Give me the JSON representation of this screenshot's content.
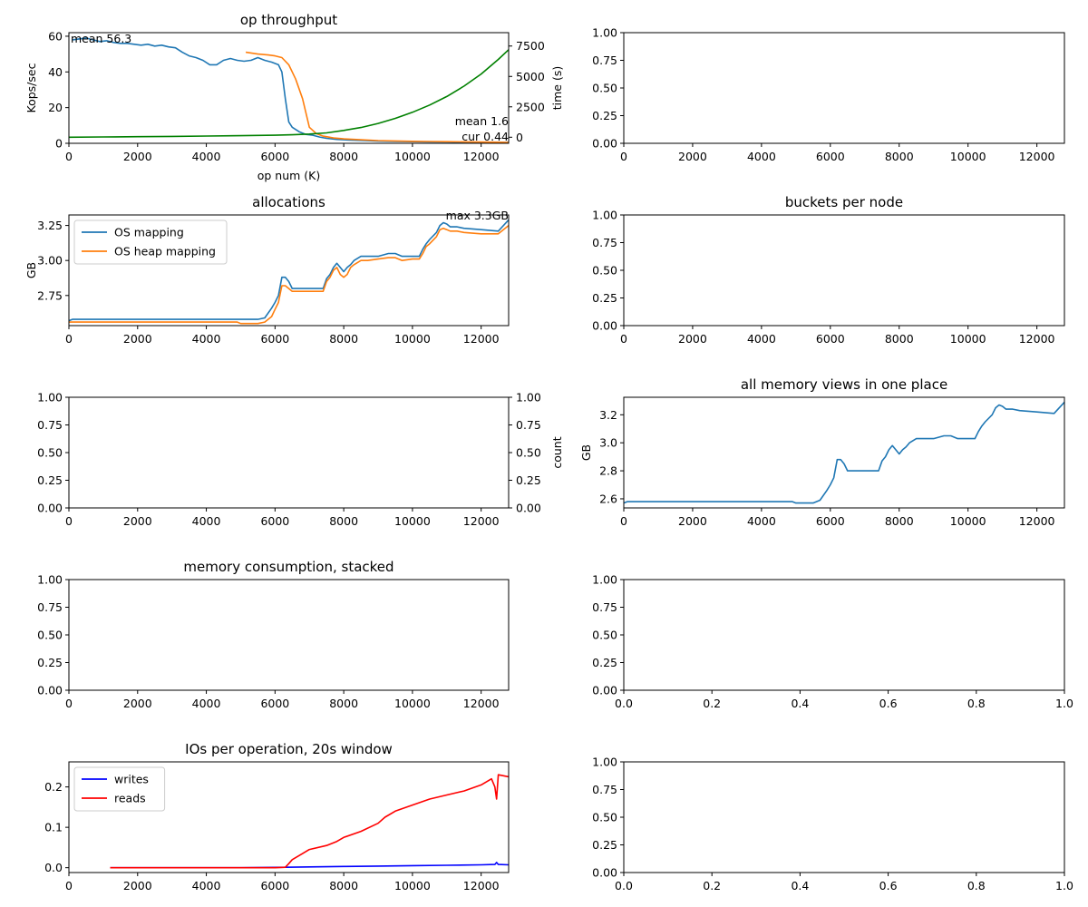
{
  "colors": {
    "blue": "#1f77b4",
    "orange": "#ff7f0e",
    "green": "#008000",
    "pure_blue": "#0000ff",
    "red": "#ff0000"
  },
  "chart_data": [
    {
      "id": "p1",
      "type": "line",
      "title": "op throughput",
      "xlabel": "op num (K)",
      "ylabel": "Kops/sec",
      "ylabel_right": "time (s)",
      "xlim": [
        0,
        12800
      ],
      "ylim": [
        0,
        62
      ],
      "ylim_right": [
        -500,
        8600
      ],
      "xticks": [
        0,
        2000,
        4000,
        6000,
        8000,
        10000,
        12000
      ],
      "yticks": [
        0,
        20,
        40,
        60
      ],
      "yticks_right": [
        0,
        2500,
        5000,
        7500
      ],
      "annotations": [
        "mean 56.3",
        "mean 1.6",
        "cur 0.44"
      ],
      "series": [
        {
          "axis": "left",
          "color": "blue",
          "x": [
            100,
            300,
            500,
            700,
            900,
            1100,
            1300,
            1500,
            1700,
            1900,
            2100,
            2300,
            2500,
            2700,
            2900,
            3100,
            3300,
            3500,
            3700,
            3900,
            4100,
            4300,
            4500,
            4700,
            4900,
            5100,
            5300,
            5500,
            5700,
            5900,
            6100,
            6200,
            6300,
            6400,
            6500,
            6700,
            6900,
            7100,
            7300,
            7500,
            7800,
            8200,
            8600,
            9000,
            9500,
            10000,
            10500,
            11000,
            11500,
            12000,
            12500,
            12800
          ],
          "y": [
            58,
            58.5,
            59,
            58,
            57,
            57.5,
            56.5,
            56,
            56,
            55.5,
            55,
            55.5,
            54.5,
            55,
            54,
            53.5,
            51,
            49,
            48,
            46.5,
            44,
            44,
            46.5,
            47.5,
            46.5,
            46,
            46.5,
            48,
            46.5,
            45.5,
            44,
            40,
            25,
            12,
            9,
            6.5,
            5,
            4.5,
            3.5,
            2.8,
            2.2,
            1.8,
            1.5,
            1.2,
            1.0,
            0.9,
            0.8,
            0.7,
            0.6,
            0.55,
            0.5,
            0.44
          ]
        },
        {
          "axis": "left",
          "color": "orange",
          "x": [
            5150,
            5500,
            5800,
            6000,
            6200,
            6400,
            6600,
            6800,
            7000,
            7200,
            7400,
            7700,
            8000,
            8500,
            9000,
            9500,
            10000,
            10500,
            11000,
            11500,
            12000,
            12500,
            12800
          ],
          "y": [
            51,
            50,
            49.5,
            49,
            48,
            44,
            36,
            25,
            9,
            5.5,
            4,
            3,
            2.5,
            2,
            1.5,
            1.3,
            1.1,
            1.0,
            0.9,
            0.8,
            0.7,
            0.6,
            0.5
          ]
        },
        {
          "axis": "right",
          "color": "green",
          "x": [
            0,
            1000,
            2000,
            3000,
            4000,
            5000,
            6000,
            6500,
            7000,
            7500,
            8000,
            8500,
            9000,
            9500,
            10000,
            10500,
            11000,
            11500,
            12000,
            12500,
            12800
          ],
          "y": [
            0,
            20,
            45,
            70,
            100,
            130,
            165,
            200,
            260,
            360,
            560,
            800,
            1130,
            1550,
            2050,
            2650,
            3350,
            4200,
            5200,
            6400,
            7200
          ]
        }
      ]
    },
    {
      "id": "p2",
      "type": "line",
      "xlim": [
        0,
        12800
      ],
      "ylim": [
        0,
        1
      ],
      "xticks": [
        0,
        2000,
        4000,
        6000,
        8000,
        10000,
        12000
      ],
      "yticks": [
        0,
        0.25,
        0.5,
        0.75,
        1.0
      ],
      "series": []
    },
    {
      "id": "p3",
      "type": "line",
      "title": "allocations",
      "ylabel": "GB",
      "xlim": [
        0,
        12800
      ],
      "ylim": [
        2.535,
        3.325
      ],
      "xticks": [
        0,
        2000,
        4000,
        6000,
        8000,
        10000,
        12000
      ],
      "yticks": [
        2.75,
        3.0,
        3.25
      ],
      "annotations": [
        "max 3.3GB"
      ],
      "legend": [
        "OS mapping",
        "OS heap mapping"
      ],
      "series": [
        {
          "name": "OS mapping",
          "color": "blue",
          "x": [
            0,
            100,
            4900,
            5000,
            5500,
            5700,
            5900,
            6000,
            6100,
            6200,
            6300,
            6400,
            6500,
            7400,
            7500,
            7600,
            7700,
            7800,
            7900,
            8000,
            8100,
            8200,
            8300,
            8500,
            8700,
            9000,
            9300,
            9500,
            9700,
            10000,
            10200,
            10300,
            10400,
            10500,
            10700,
            10800,
            10900,
            11000,
            11100,
            11300,
            11500,
            12000,
            12500,
            12800
          ],
          "y": [
            2.57,
            2.58,
            2.58,
            2.58,
            2.58,
            2.59,
            2.66,
            2.7,
            2.75,
            2.88,
            2.88,
            2.85,
            2.8,
            2.8,
            2.87,
            2.9,
            2.95,
            2.98,
            2.95,
            2.92,
            2.95,
            2.97,
            3.0,
            3.03,
            3.03,
            3.03,
            3.05,
            3.05,
            3.03,
            3.03,
            3.03,
            3.08,
            3.12,
            3.15,
            3.2,
            3.25,
            3.27,
            3.26,
            3.24,
            3.24,
            3.23,
            3.22,
            3.21,
            3.29
          ]
        },
        {
          "name": "OS heap mapping",
          "color": "orange",
          "x": [
            0,
            100,
            4900,
            5000,
            5500,
            5700,
            5900,
            6000,
            6100,
            6200,
            6300,
            6400,
            6500,
            7400,
            7500,
            7600,
            7700,
            7800,
            7900,
            8000,
            8100,
            8200,
            8300,
            8500,
            8700,
            9000,
            9300,
            9500,
            9700,
            10000,
            10200,
            10300,
            10400,
            10500,
            10700,
            10800,
            10900,
            11000,
            11100,
            11300,
            11500,
            12000,
            12500,
            12800
          ],
          "y": [
            2.56,
            2.56,
            2.56,
            2.55,
            2.55,
            2.56,
            2.6,
            2.65,
            2.7,
            2.82,
            2.82,
            2.8,
            2.78,
            2.78,
            2.85,
            2.88,
            2.93,
            2.95,
            2.9,
            2.88,
            2.9,
            2.95,
            2.97,
            3.0,
            3.0,
            3.01,
            3.02,
            3.02,
            3.0,
            3.01,
            3.01,
            3.05,
            3.1,
            3.12,
            3.17,
            3.22,
            3.23,
            3.22,
            3.21,
            3.21,
            3.2,
            3.19,
            3.19,
            3.25
          ]
        }
      ]
    },
    {
      "id": "p4",
      "type": "line",
      "title": "buckets per node",
      "xlim": [
        0,
        12800
      ],
      "ylim": [
        0,
        1
      ],
      "xticks": [
        0,
        2000,
        4000,
        6000,
        8000,
        10000,
        12000
      ],
      "yticks": [
        0,
        0.25,
        0.5,
        0.75,
        1.0
      ],
      "series": []
    },
    {
      "id": "p5",
      "type": "line",
      "ylabel_right": "count",
      "xlim": [
        0,
        12800
      ],
      "ylim": [
        0,
        1
      ],
      "ylim_right": [
        0,
        1
      ],
      "xticks": [
        0,
        2000,
        4000,
        6000,
        8000,
        10000,
        12000
      ],
      "yticks": [
        0,
        0.25,
        0.5,
        0.75,
        1.0
      ],
      "yticks_right": [
        0,
        0.25,
        0.5,
        0.75,
        1.0
      ],
      "series": []
    },
    {
      "id": "p6",
      "type": "line",
      "title": "all memory views in one place",
      "ylabel": "GB",
      "xlim": [
        0,
        12800
      ],
      "ylim": [
        2.535,
        3.325
      ],
      "xticks": [
        0,
        2000,
        4000,
        6000,
        8000,
        10000,
        12000
      ],
      "yticks": [
        2.6,
        2.8,
        3.0,
        3.2
      ],
      "series": [
        {
          "color": "blue",
          "x": [
            0,
            100,
            4900,
            5000,
            5500,
            5700,
            5900,
            6000,
            6100,
            6200,
            6300,
            6400,
            6500,
            7400,
            7500,
            7600,
            7700,
            7800,
            7900,
            8000,
            8100,
            8200,
            8300,
            8500,
            8700,
            9000,
            9300,
            9500,
            9700,
            10000,
            10200,
            10300,
            10400,
            10500,
            10700,
            10800,
            10900,
            11000,
            11100,
            11300,
            11500,
            12000,
            12500,
            12800
          ],
          "y": [
            2.57,
            2.58,
            2.58,
            2.57,
            2.57,
            2.59,
            2.66,
            2.7,
            2.75,
            2.88,
            2.88,
            2.85,
            2.8,
            2.8,
            2.87,
            2.9,
            2.95,
            2.98,
            2.95,
            2.92,
            2.95,
            2.97,
            3.0,
            3.03,
            3.03,
            3.03,
            3.05,
            3.05,
            3.03,
            3.03,
            3.03,
            3.08,
            3.12,
            3.15,
            3.2,
            3.25,
            3.27,
            3.26,
            3.24,
            3.24,
            3.23,
            3.22,
            3.21,
            3.29
          ]
        }
      ]
    },
    {
      "id": "p7",
      "type": "line",
      "title": "memory consumption, stacked",
      "xlim": [
        0,
        12800
      ],
      "ylim": [
        0,
        1
      ],
      "xticks": [
        0,
        2000,
        4000,
        6000,
        8000,
        10000,
        12000
      ],
      "yticks": [
        0,
        0.25,
        0.5,
        0.75,
        1.0
      ],
      "series": []
    },
    {
      "id": "p8",
      "type": "line",
      "xlim": [
        0,
        1
      ],
      "ylim": [
        0,
        1
      ],
      "xticks": [
        0,
        0.2,
        0.4,
        0.6,
        0.8,
        1.0
      ],
      "yticks": [
        0,
        0.25,
        0.5,
        0.75,
        1.0
      ],
      "series": []
    },
    {
      "id": "p9",
      "type": "line",
      "title": "IOs per operation, 20s window",
      "xlim": [
        0,
        12800
      ],
      "ylim": [
        -0.012,
        0.262
      ],
      "xticks": [
        0,
        2000,
        4000,
        6000,
        8000,
        10000,
        12000
      ],
      "yticks": [
        0.0,
        0.1,
        0.2
      ],
      "legend": [
        "writes",
        "reads"
      ],
      "series": [
        {
          "name": "writes",
          "color": "pure_blue",
          "x": [
            1200,
            3000,
            5000,
            6300,
            7000,
            8000,
            9000,
            10000,
            11000,
            12000,
            12400,
            12450,
            12500,
            12800
          ],
          "y": [
            0,
            0,
            0,
            0.001,
            0.002,
            0.003,
            0.004,
            0.005,
            0.006,
            0.007,
            0.008,
            0.013,
            0.008,
            0.007
          ]
        },
        {
          "name": "reads",
          "color": "red",
          "x": [
            1200,
            2000,
            3000,
            4000,
            5000,
            6000,
            6300,
            6400,
            6500,
            6800,
            7000,
            7500,
            7800,
            8000,
            8500,
            9000,
            9200,
            9500,
            10000,
            10500,
            11000,
            11500,
            12000,
            12300,
            12400,
            12450,
            12500,
            12800
          ],
          "y": [
            0,
            0,
            0,
            0,
            0,
            0,
            0.001,
            0.01,
            0.02,
            0.035,
            0.045,
            0.055,
            0.065,
            0.075,
            0.09,
            0.11,
            0.125,
            0.14,
            0.155,
            0.17,
            0.18,
            0.19,
            0.205,
            0.22,
            0.2,
            0.17,
            0.23,
            0.225
          ]
        }
      ]
    },
    {
      "id": "p10",
      "type": "line",
      "xlim": [
        0,
        1
      ],
      "ylim": [
        0,
        1
      ],
      "xticks": [
        0,
        0.2,
        0.4,
        0.6,
        0.8,
        1.0
      ],
      "yticks": [
        0,
        0.25,
        0.5,
        0.75,
        1.0
      ],
      "series": []
    }
  ]
}
